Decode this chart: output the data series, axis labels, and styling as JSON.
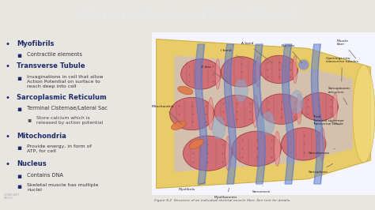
{
  "title": "What is the Structure of Skeletal Muscle?",
  "title_bg_color": "#1b2a6b",
  "title_text_color": "#e8eaf0",
  "body_bg_color": "#e8e6e0",
  "bullet_color_main": "#1b2a6b",
  "bullet_color_sub": "#333333",
  "bullet_points": [
    {
      "level": 0,
      "text": "Myofibrils"
    },
    {
      "level": 1,
      "text": "Contractile elements"
    },
    {
      "level": 0,
      "text": "Transverse Tubule"
    },
    {
      "level": 1,
      "text": "Invaginations in cell that allow\nAction Potential on surface to\nreach deep into cell"
    },
    {
      "level": 0,
      "text": "Sarcoplasmic Reticulum"
    },
    {
      "level": 1,
      "text": "Terminal Cisternae/Lateral Sac"
    },
    {
      "level": 2,
      "text": "Store calcium which is\nreleased by action potential"
    },
    {
      "level": 0,
      "text": "Mitochondria"
    },
    {
      "level": 1,
      "text": "Provide energy, in form of\nATP, for cell"
    },
    {
      "level": 0,
      "text": "Nucleus"
    },
    {
      "level": 1,
      "text": "Contains DNA"
    },
    {
      "level": 1,
      "text": "Skeletal muscle has multiple\nnuclei"
    }
  ],
  "figure_caption": "Figure 8.2  Structure of an individual skeletal muscle fiber. See text for details.",
  "caption_color": "#555555",
  "watermark": "SCARCAST\nMUSIC"
}
